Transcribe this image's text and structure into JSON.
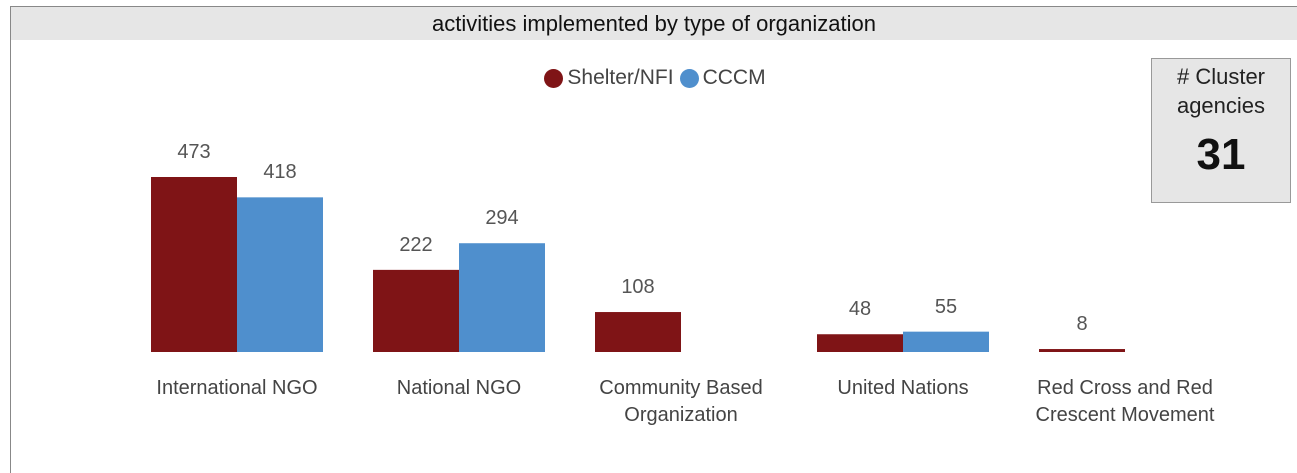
{
  "chart_data": {
    "type": "bar",
    "title": "activities implemented by type of organization",
    "categories": [
      "International NGO",
      "National NGO",
      "Community Based Organization",
      "United Nations",
      "Red Cross and Red Crescent Movement"
    ],
    "series": [
      {
        "name": "Shelter/NFI",
        "color": "#7f1416",
        "values": [
          473,
          222,
          108,
          48,
          8
        ]
      },
      {
        "name": "CCCM",
        "color": "#4f8fcd",
        "values": [
          418,
          294,
          null,
          55,
          null
        ]
      }
    ]
  },
  "kpi": {
    "label": "# Cluster agencies",
    "value": 31
  }
}
